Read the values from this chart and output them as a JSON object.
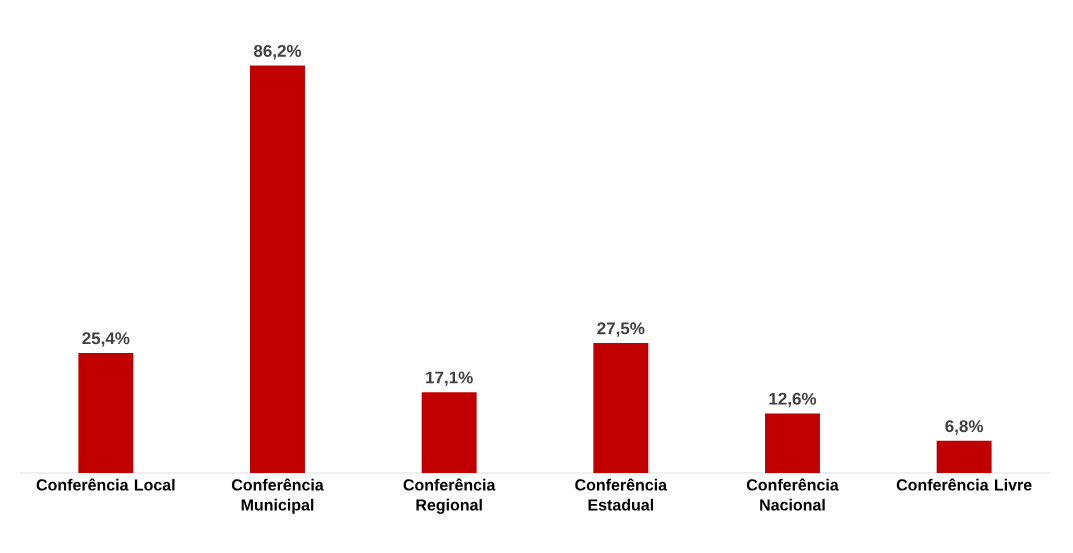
{
  "chart_data": {
    "type": "bar",
    "categories": [
      "Conferência Local",
      "Conferência Municipal",
      "Conferência Regional",
      "Conferência Estadual",
      "Conferência Nacional",
      "Conferência Livre"
    ],
    "values": [
      25.4,
      86.2,
      17.1,
      27.5,
      12.6,
      6.8
    ],
    "value_labels": [
      "25,4%",
      "86,2%",
      "17,1%",
      "27,5%",
      "12,6%",
      "6,8%"
    ],
    "color": "#c00000"
  }
}
